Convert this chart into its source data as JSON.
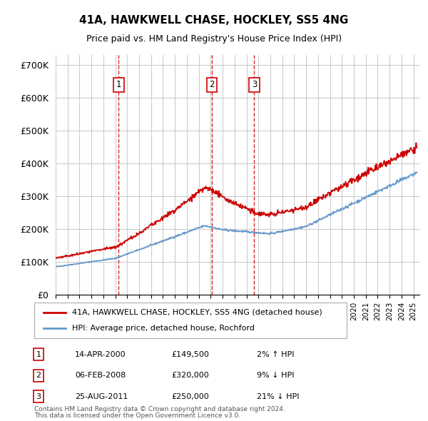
{
  "title": "41A, HAWKWELL CHASE, HOCKLEY, SS5 4NG",
  "subtitle": "Price paid vs. HM Land Registry's House Price Index (HPI)",
  "ylabel_ticks": [
    "£0",
    "£100K",
    "£200K",
    "£300K",
    "£400K",
    "£500K",
    "£600K",
    "£700K"
  ],
  "ytick_vals": [
    0,
    100000,
    200000,
    300000,
    400000,
    500000,
    600000,
    700000
  ],
  "ylim": [
    0,
    730000
  ],
  "xlim_start": 1995.0,
  "xlim_end": 2025.5,
  "property_color": "#cc0000",
  "hpi_color": "#6699cc",
  "vline_color": "#cc0000",
  "grid_color": "#cccccc",
  "transactions": [
    {
      "label": "1",
      "date": 2000.28,
      "price": 149500
    },
    {
      "label": "2",
      "date": 2008.09,
      "price": 320000
    },
    {
      "label": "3",
      "date": 2011.65,
      "price": 250000
    }
  ],
  "legend_property": "41A, HAWKWELL CHASE, HOCKLEY, SS5 4NG (detached house)",
  "legend_hpi": "HPI: Average price, detached house, Rochford",
  "table_rows": [
    {
      "num": "1",
      "date": "14-APR-2000",
      "price": "£149,500",
      "change": "2% ↑ HPI"
    },
    {
      "num": "2",
      "date": "06-FEB-2008",
      "price": "£320,000",
      "change": "9% ↓ HPI"
    },
    {
      "num": "3",
      "date": "25-AUG-2011",
      "price": "£250,000",
      "change": "21% ↓ HPI"
    }
  ],
  "footnote1": "Contains HM Land Registry data © Crown copyright and database right 2024.",
  "footnote2": "This data is licensed under the Open Government Licence v3.0."
}
